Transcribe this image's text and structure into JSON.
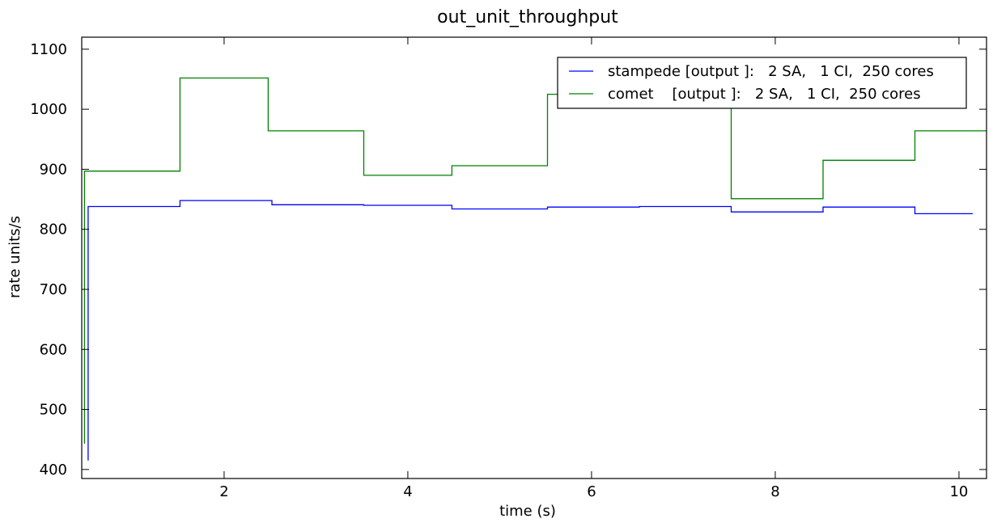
{
  "chart_data": {
    "type": "line",
    "step": "post",
    "title": "out_unit_throughput",
    "xlabel": "time (s)",
    "ylabel": "rate units/s",
    "xlim": [
      0.45,
      10.3
    ],
    "ylim": [
      385,
      1120
    ],
    "xticks": [
      2,
      4,
      6,
      8,
      10
    ],
    "yticks": [
      400,
      500,
      600,
      700,
      800,
      900,
      1000,
      1100
    ],
    "grid": false,
    "legend_position": "top-right",
    "series": [
      {
        "name": "stampede [output ]:   2 SA,   1 CI,  250 cores",
        "color": "#0000ff",
        "x": [
          0.52,
          0.52,
          1.52,
          2.52,
          3.52,
          4.48,
          5.52,
          6.52,
          7.52,
          8.52,
          9.52,
          10.15
        ],
        "y": [
          415,
          838,
          848,
          841,
          840,
          834,
          837,
          838,
          829,
          837,
          826,
          826
        ]
      },
      {
        "name": "comet    [output ]:   2 SA,   1 CI,  250 cores",
        "color": "#008000",
        "x": [
          0.48,
          0.48,
          1.52,
          2.48,
          3.52,
          4.48,
          5.52,
          6.52,
          7.52,
          8.52,
          9.52,
          10.3
        ],
        "y": [
          443,
          897,
          1052,
          964,
          890,
          906,
          1025,
          1043,
          851,
          915,
          964,
          964
        ]
      }
    ]
  }
}
